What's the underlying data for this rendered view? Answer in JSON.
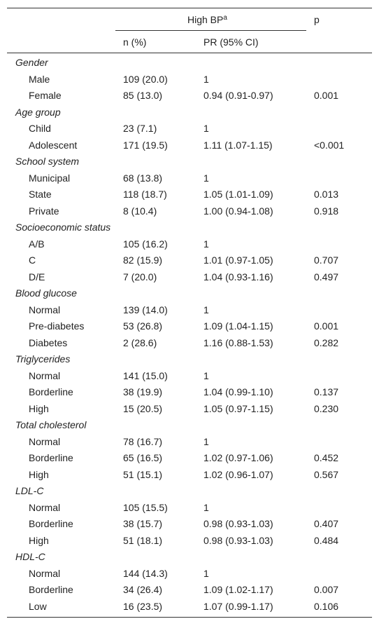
{
  "header": {
    "group": "High BP",
    "group_sup": "a",
    "p": "p",
    "n": "n (%)",
    "pr": "PR (95% CI)"
  },
  "groups": [
    {
      "name": "Gender",
      "rows": [
        {
          "label": "Male",
          "n": "109 (20.0)",
          "pr": "1"
        },
        {
          "label": "Female",
          "n": "85 (13.0)",
          "pr": "0.94 (0.91-0.97)",
          "p": "0.001"
        }
      ]
    },
    {
      "name": "Age group",
      "rows": [
        {
          "label": "Child",
          "n": "23 (7.1)",
          "pr": "1"
        },
        {
          "label": "Adolescent",
          "n": "171 (19.5)",
          "pr": "1.11 (1.07-1.15)",
          "p": "<0.001"
        }
      ]
    },
    {
      "name": "School system",
      "rows": [
        {
          "label": "Municipal",
          "n": "68 (13.8)",
          "pr": "1"
        },
        {
          "label": "State",
          "n": "118 (18.7)",
          "pr": "1.05 (1.01-1.09)",
          "p": "0.013"
        },
        {
          "label": "Private",
          "n": "8 (10.4)",
          "pr": "1.00 (0.94-1.08)",
          "p": "0.918"
        }
      ]
    },
    {
      "name": "Socioeconomic status",
      "rows": [
        {
          "label": "A/B",
          "n": "105 (16.2)",
          "pr": "1"
        },
        {
          "label": "C",
          "n": "82 (15.9)",
          "pr": "1.01 (0.97-1.05)",
          "p": "0.707"
        },
        {
          "label": "D/E",
          "n": "7 (20.0)",
          "pr": "1.04 (0.93-1.16)",
          "p": "0.497"
        }
      ]
    },
    {
      "name": "Blood glucose",
      "rows": [
        {
          "label": "Normal",
          "n": "139 (14.0)",
          "pr": "1"
        },
        {
          "label": "Pre-diabetes",
          "n": "53 (26.8)",
          "pr": "1.09 (1.04-1.15)",
          "p": "0.001"
        },
        {
          "label": "Diabetes",
          "n": "2 (28.6)",
          "pr": "1.16 (0.88-1.53)",
          "p": "0.282"
        }
      ]
    },
    {
      "name": "Triglycerides",
      "rows": [
        {
          "label": "Normal",
          "n": "141 (15.0)",
          "pr": "1"
        },
        {
          "label": "Borderline",
          "n": "38 (19.9)",
          "pr": "1.04 (0.99-1.10)",
          "p": "0.137"
        },
        {
          "label": "High",
          "n": "15 (20.5)",
          "pr": "1.05 (0.97-1.15)",
          "p": "0.230"
        }
      ]
    },
    {
      "name": "Total cholesterol",
      "rows": [
        {
          "label": "Normal",
          "n": "78 (16.7)",
          "pr": "1"
        },
        {
          "label": "Borderline",
          "n": "65 (16.5)",
          "pr": "1.02 (0.97-1.06)",
          "p": "0.452"
        },
        {
          "label": "High",
          "n": "51 (15.1)",
          "pr": "1.02 (0.96-1.07)",
          "p": "0.567"
        }
      ]
    },
    {
      "name": "LDL-C",
      "rows": [
        {
          "label": "Normal",
          "n": "105 (15.5)",
          "pr": "1"
        },
        {
          "label": "Borderline",
          "n": "38 (15.7)",
          "pr": "0.98 (0.93-1.03)",
          "p": "0.407"
        },
        {
          "label": "High",
          "n": "51 (18.1)",
          "pr": "0.98 (0.93-1.03)",
          "p": "0.484"
        }
      ]
    },
    {
      "name": "HDL-C",
      "rows": [
        {
          "label": "Normal",
          "n": "144 (14.3)",
          "pr": "1"
        },
        {
          "label": "Borderline",
          "n": "34 (26.4)",
          "pr": "1.09 (1.02-1.17)",
          "p": "0.007"
        },
        {
          "label": "Low",
          "n": "16 (23.5)",
          "pr": "1.07 (0.99-1.17)",
          "p": "0.106"
        }
      ]
    }
  ]
}
